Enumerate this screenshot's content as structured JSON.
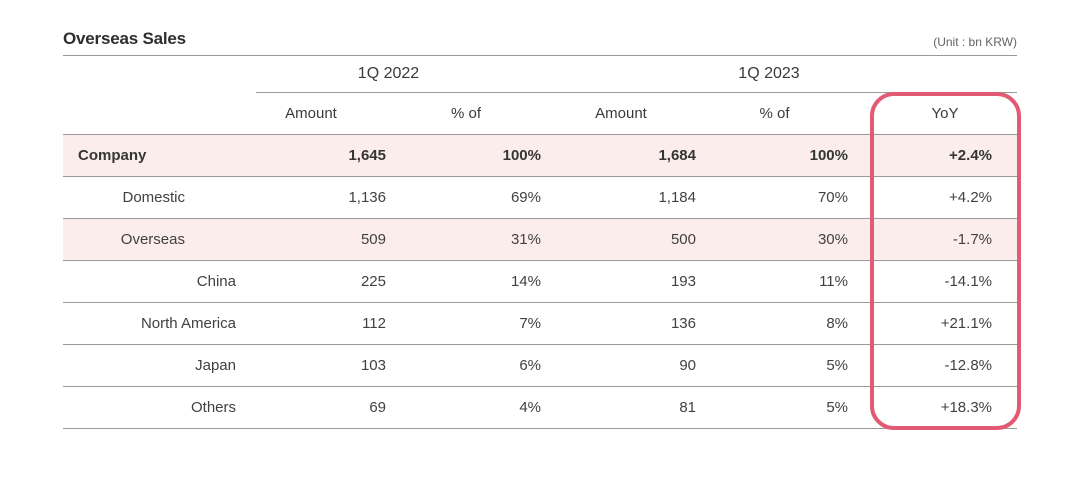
{
  "page": {
    "title": "Overseas Sales",
    "unit_note": "(Unit : bn KRW)"
  },
  "table": {
    "groups": [
      {
        "label": "1Q 2022"
      },
      {
        "label": "1Q 2023"
      }
    ],
    "columns": [
      "Amount",
      "% of",
      "Amount",
      "% of",
      "YoY"
    ],
    "rows": [
      {
        "label": "Company",
        "level": 0,
        "emphasis": true,
        "highlighted": true,
        "amount_2022": "1,645",
        "pct_2022": "100%",
        "amount_2023": "1,684",
        "pct_2023": "100%",
        "yoy": "+2.4%"
      },
      {
        "label": "Domestic",
        "level": 1,
        "emphasis": false,
        "highlighted": false,
        "amount_2022": "1,136",
        "pct_2022": "69%",
        "amount_2023": "1,184",
        "pct_2023": "70%",
        "yoy": "+4.2%"
      },
      {
        "label": "Overseas",
        "level": 1,
        "emphasis": false,
        "highlighted": true,
        "amount_2022": "509",
        "pct_2022": "31%",
        "amount_2023": "500",
        "pct_2023": "30%",
        "yoy": "-1.7%"
      },
      {
        "label": "China",
        "level": 2,
        "emphasis": false,
        "highlighted": false,
        "amount_2022": "225",
        "pct_2022": "14%",
        "amount_2023": "193",
        "pct_2023": "11%",
        "yoy": "-14.1%"
      },
      {
        "label": "North America",
        "level": 2,
        "emphasis": false,
        "highlighted": false,
        "amount_2022": "112",
        "pct_2022": "7%",
        "amount_2023": "136",
        "pct_2023": "8%",
        "yoy": "+21.1%"
      },
      {
        "label": "Japan",
        "level": 2,
        "emphasis": false,
        "highlighted": false,
        "amount_2022": "103",
        "pct_2022": "6%",
        "amount_2023": "90",
        "pct_2023": "5%",
        "yoy": "-12.8%"
      },
      {
        "label": "Others",
        "level": 2,
        "emphasis": false,
        "highlighted": false,
        "amount_2022": "69",
        "pct_2022": "4%",
        "amount_2023": "81",
        "pct_2023": "5%",
        "yoy": "+18.3%"
      }
    ]
  },
  "colors": {
    "highlight_border": "#e25b74",
    "row_highlight_bg": "#fbedec",
    "border_gray": "#9a9a9a"
  }
}
